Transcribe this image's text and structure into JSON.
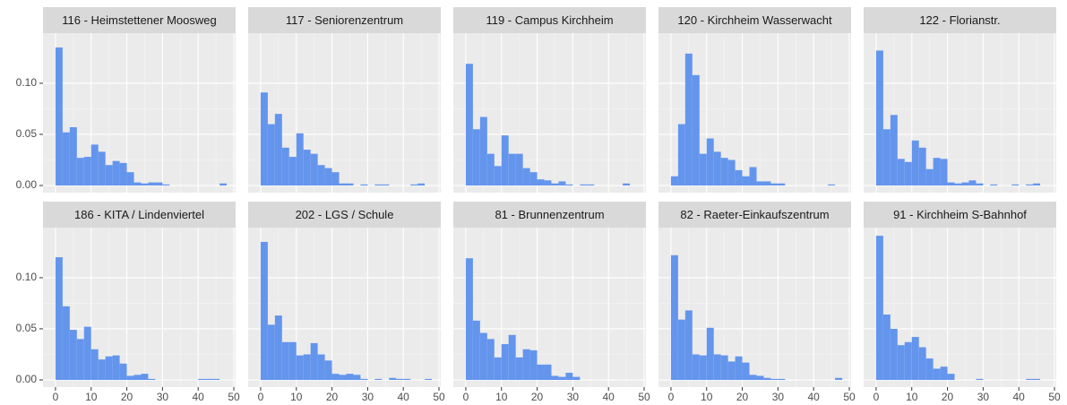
{
  "chart_data": [
    {
      "type": "histogram",
      "title": "116 - Heimstettener Moosweg",
      "color": "#6495ed",
      "bins": [
        0,
        2,
        4,
        6,
        8,
        10,
        12,
        14,
        16,
        18,
        20,
        22,
        24,
        26,
        28,
        30,
        32,
        34,
        36,
        38,
        40,
        42,
        44,
        46,
        48
      ],
      "values": [
        0.135,
        0.052,
        0.057,
        0.027,
        0.028,
        0.04,
        0.033,
        0.02,
        0.024,
        0.022,
        0.013,
        0.003,
        0.002,
        0.003,
        0.003,
        0.001,
        0,
        0,
        0,
        0,
        0,
        0,
        0,
        0.002
      ],
      "xlim": [
        -3.5,
        50.5
      ],
      "ylim": [
        -0.007,
        0.149
      ],
      "xticks": [
        0,
        10,
        20,
        30,
        40,
        50
      ],
      "yticks": [
        {
          "value": 0,
          "label": "0.00"
        },
        {
          "value": 0.05,
          "label": "0.05"
        },
        {
          "value": 0.1,
          "label": "0.10"
        }
      ]
    },
    {
      "type": "histogram",
      "title": "117 - Seniorenzentrum",
      "color": "#6495ed",
      "bins": [
        0,
        2,
        4,
        6,
        8,
        10,
        12,
        14,
        16,
        18,
        20,
        22,
        24,
        26,
        28,
        30,
        32,
        34,
        36,
        38,
        40,
        42,
        44,
        46,
        48
      ],
      "values": [
        0.091,
        0.06,
        0.07,
        0.037,
        0.028,
        0.051,
        0.035,
        0.031,
        0.02,
        0.017,
        0.013,
        0.002,
        0.002,
        0,
        0.001,
        0,
        0.001,
        0.001,
        0,
        0,
        0,
        0.001,
        0.002,
        0
      ],
      "xlim": [
        -3.5,
        50.5
      ],
      "ylim": [
        -0.007,
        0.149
      ],
      "xticks": [
        0,
        10,
        20,
        30,
        40,
        50
      ],
      "yticks": [
        0,
        0.05,
        0.1
      ]
    },
    {
      "type": "histogram",
      "title": "119 - Campus Kirchheim",
      "color": "#6495ed",
      "bins": [
        0,
        2,
        4,
        6,
        8,
        10,
        12,
        14,
        16,
        18,
        20,
        22,
        24,
        26,
        28,
        30,
        32,
        34,
        36,
        38,
        40,
        42,
        44,
        46,
        48
      ],
      "values": [
        0.119,
        0.055,
        0.067,
        0.031,
        0.019,
        0.049,
        0.031,
        0.031,
        0.017,
        0.013,
        0.006,
        0.005,
        0.002,
        0.004,
        0.001,
        0,
        0.001,
        0.001,
        0,
        0,
        0,
        0,
        0.002,
        0
      ],
      "xlim": [
        -3.5,
        50.5
      ],
      "ylim": [
        -0.007,
        0.149
      ],
      "xticks": [
        0,
        10,
        20,
        30,
        40,
        50
      ],
      "yticks": [
        0,
        0.05,
        0.1
      ]
    },
    {
      "type": "histogram",
      "title": "120 - Kirchheim Wasserwacht",
      "color": "#6495ed",
      "bins": [
        0,
        2,
        4,
        6,
        8,
        10,
        12,
        14,
        16,
        18,
        20,
        22,
        24,
        26,
        28,
        30,
        32,
        34,
        36,
        38,
        40,
        42,
        44,
        46,
        48
      ],
      "values": [
        0.009,
        0.06,
        0.129,
        0.108,
        0.031,
        0.046,
        0.033,
        0.027,
        0.025,
        0.015,
        0.009,
        0.018,
        0.004,
        0.004,
        0.002,
        0.002,
        0,
        0,
        0,
        0,
        0,
        0,
        0.001,
        0
      ],
      "xlim": [
        -3.5,
        50.5
      ],
      "ylim": [
        -0.007,
        0.149
      ],
      "xticks": [
        0,
        10,
        20,
        30,
        40,
        50
      ],
      "yticks": [
        0,
        0.05,
        0.1
      ]
    },
    {
      "type": "histogram",
      "title": "122 - Florianstr.",
      "color": "#6495ed",
      "bins": [
        0,
        2,
        4,
        6,
        8,
        10,
        12,
        14,
        16,
        18,
        20,
        22,
        24,
        26,
        28,
        30,
        32,
        34,
        36,
        38,
        40,
        42,
        44,
        46,
        48
      ],
      "values": [
        0.132,
        0.055,
        0.069,
        0.026,
        0.023,
        0.044,
        0.037,
        0.016,
        0.027,
        0.026,
        0.003,
        0.002,
        0.003,
        0.005,
        0.002,
        0,
        0.001,
        0,
        0,
        0.001,
        0,
        0.001,
        0.002,
        0
      ],
      "xlim": [
        -3.5,
        50.5
      ],
      "ylim": [
        -0.007,
        0.149
      ],
      "xticks": [
        0,
        10,
        20,
        30,
        40,
        50
      ],
      "yticks": [
        0,
        0.05,
        0.1
      ]
    },
    {
      "type": "histogram",
      "title": "186 - KITA / Lindenviertel",
      "color": "#6495ed",
      "bins": [
        0,
        2,
        4,
        6,
        8,
        10,
        12,
        14,
        16,
        18,
        20,
        22,
        24,
        26,
        28,
        30,
        32,
        34,
        36,
        38,
        40,
        42,
        44,
        46,
        48
      ],
      "values": [
        0.12,
        0.072,
        0.049,
        0.04,
        0.052,
        0.03,
        0.02,
        0.023,
        0.024,
        0.016,
        0.004,
        0.005,
        0.006,
        0.001,
        0,
        0,
        0,
        0,
        0,
        0,
        0.001,
        0.001,
        0.001,
        0
      ],
      "xlim": [
        -3.5,
        50.5
      ],
      "ylim": [
        -0.007,
        0.149
      ],
      "xticks": [
        0,
        10,
        20,
        30,
        40,
        50
      ],
      "yticks": [
        {
          "value": 0,
          "label": "0.00"
        },
        {
          "value": 0.05,
          "label": "0.05"
        },
        {
          "value": 0.1,
          "label": "0.10"
        }
      ]
    },
    {
      "type": "histogram",
      "title": "202 - LGS / Schule",
      "color": "#6495ed",
      "bins": [
        0,
        2,
        4,
        6,
        8,
        10,
        12,
        14,
        16,
        18,
        20,
        22,
        24,
        26,
        28,
        30,
        32,
        34,
        36,
        38,
        40,
        42,
        44,
        46,
        48
      ],
      "values": [
        0.135,
        0.054,
        0.063,
        0.037,
        0.037,
        0.024,
        0.025,
        0.036,
        0.025,
        0.019,
        0.006,
        0.005,
        0.006,
        0.005,
        0.001,
        0,
        0.001,
        0,
        0.002,
        0.001,
        0.001,
        0,
        0,
        0.001
      ],
      "xlim": [
        -3.5,
        50.5
      ],
      "ylim": [
        -0.007,
        0.149
      ],
      "xticks": [
        0,
        10,
        20,
        30,
        40,
        50
      ],
      "yticks": [
        0,
        0.05,
        0.1
      ]
    },
    {
      "type": "histogram",
      "title": "81 - Brunnenzentrum",
      "color": "#6495ed",
      "bins": [
        0,
        2,
        4,
        6,
        8,
        10,
        12,
        14,
        16,
        18,
        20,
        22,
        24,
        26,
        28,
        30,
        32,
        34,
        36,
        38,
        40,
        42,
        44,
        46,
        48
      ],
      "values": [
        0.119,
        0.058,
        0.046,
        0.04,
        0.022,
        0.035,
        0.044,
        0.022,
        0.03,
        0.029,
        0.015,
        0.015,
        0.004,
        0.003,
        0.007,
        0.003,
        0,
        0,
        0,
        0,
        0,
        0,
        0,
        0
      ],
      "xlim": [
        -3.5,
        50.5
      ],
      "ylim": [
        -0.007,
        0.149
      ],
      "xticks": [
        0,
        10,
        20,
        30,
        40,
        50
      ],
      "yticks": [
        0,
        0.05,
        0.1
      ]
    },
    {
      "type": "histogram",
      "title": "82 - Raeter-Einkaufszentrum",
      "color": "#6495ed",
      "bins": [
        0,
        2,
        4,
        6,
        8,
        10,
        12,
        14,
        16,
        18,
        20,
        22,
        24,
        26,
        28,
        30,
        32,
        34,
        36,
        38,
        40,
        42,
        44,
        46,
        48
      ],
      "values": [
        0.122,
        0.059,
        0.068,
        0.025,
        0.024,
        0.051,
        0.025,
        0.024,
        0.018,
        0.023,
        0.017,
        0.005,
        0.004,
        0.002,
        0.001,
        0.001,
        0,
        0,
        0,
        0,
        0,
        0,
        0,
        0.002
      ],
      "xlim": [
        -3.5,
        50.5
      ],
      "ylim": [
        -0.007,
        0.149
      ],
      "xticks": [
        0,
        10,
        20,
        30,
        40,
        50
      ],
      "yticks": [
        0,
        0.05,
        0.1
      ]
    },
    {
      "type": "histogram",
      "title": "91 - Kirchheim S-Bahnhof",
      "color": "#6495ed",
      "bins": [
        0,
        2,
        4,
        6,
        8,
        10,
        12,
        14,
        16,
        18,
        20,
        22,
        24,
        26,
        28,
        30,
        32,
        34,
        36,
        38,
        40,
        42,
        44,
        46,
        48
      ],
      "values": [
        0.141,
        0.064,
        0.05,
        0.034,
        0.037,
        0.042,
        0.032,
        0.021,
        0.011,
        0.013,
        0.006,
        0,
        0,
        0,
        0.001,
        0,
        0,
        0,
        0,
        0,
        0,
        0.001,
        0.001,
        0
      ],
      "xlim": [
        -3.5,
        50.5
      ],
      "ylim": [
        -0.007,
        0.149
      ],
      "xticks": [
        0,
        10,
        20,
        30,
        40,
        50
      ],
      "yticks": [
        0,
        0.05,
        0.1
      ]
    }
  ]
}
